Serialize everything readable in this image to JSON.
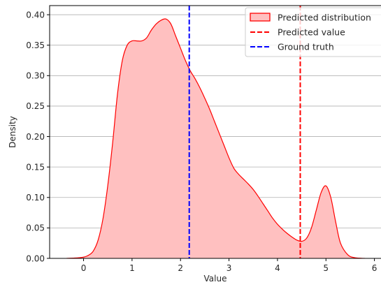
{
  "chart_data": {
    "type": "area",
    "xlabel": "Value",
    "ylabel": "Density",
    "xlim": [
      -0.7,
      6.15
    ],
    "ylim": [
      0,
      0.415
    ],
    "xticks": [
      0,
      1,
      2,
      3,
      4,
      5,
      6
    ],
    "xtick_labels": [
      "0",
      "1",
      "2",
      "3",
      "4",
      "5",
      "6"
    ],
    "yticks": [
      0.0,
      0.05,
      0.1,
      0.15,
      0.2,
      0.25,
      0.3,
      0.35,
      0.4
    ],
    "ytick_labels": [
      "0.00",
      "0.05",
      "0.10",
      "0.15",
      "0.20",
      "0.25",
      "0.30",
      "0.35",
      "0.40"
    ],
    "grid": "horizontal",
    "legend_position": "top-right",
    "series": [
      {
        "name": "Predicted distribution",
        "kind": "kde-area",
        "color": "#ff0000",
        "fill": "#ffc0c0",
        "x": [
          -0.35,
          -0.2,
          -0.1,
          0.0,
          0.1,
          0.2,
          0.3,
          0.4,
          0.5,
          0.6,
          0.7,
          0.8,
          0.9,
          1.0,
          1.1,
          1.2,
          1.3,
          1.4,
          1.5,
          1.6,
          1.7,
          1.8,
          1.9,
          2.0,
          2.1,
          2.2,
          2.3,
          2.4,
          2.5,
          2.6,
          2.7,
          2.8,
          2.9,
          3.0,
          3.1,
          3.2,
          3.3,
          3.4,
          3.5,
          3.6,
          3.7,
          3.8,
          3.9,
          4.0,
          4.1,
          4.2,
          4.3,
          4.4,
          4.5,
          4.6,
          4.7,
          4.8,
          4.9,
          5.0,
          5.1,
          5.2,
          5.3,
          5.45,
          5.6,
          5.8
        ],
        "y": [
          0.0,
          0.0005,
          0.001,
          0.002,
          0.005,
          0.012,
          0.03,
          0.065,
          0.12,
          0.19,
          0.27,
          0.325,
          0.35,
          0.357,
          0.357,
          0.357,
          0.362,
          0.375,
          0.385,
          0.391,
          0.393,
          0.385,
          0.365,
          0.345,
          0.325,
          0.308,
          0.295,
          0.28,
          0.263,
          0.245,
          0.225,
          0.205,
          0.185,
          0.165,
          0.148,
          0.138,
          0.13,
          0.122,
          0.113,
          0.102,
          0.09,
          0.078,
          0.066,
          0.056,
          0.048,
          0.041,
          0.035,
          0.03,
          0.028,
          0.033,
          0.05,
          0.079,
          0.108,
          0.119,
          0.1,
          0.06,
          0.025,
          0.006,
          0.001,
          0.0
        ]
      },
      {
        "name": "Predicted value",
        "kind": "vline",
        "x": 4.47,
        "color": "#ff0000",
        "dash": "dashed"
      },
      {
        "name": "Ground truth",
        "kind": "vline",
        "x": 2.18,
        "color": "#0000ff",
        "dash": "dashed"
      }
    ]
  }
}
